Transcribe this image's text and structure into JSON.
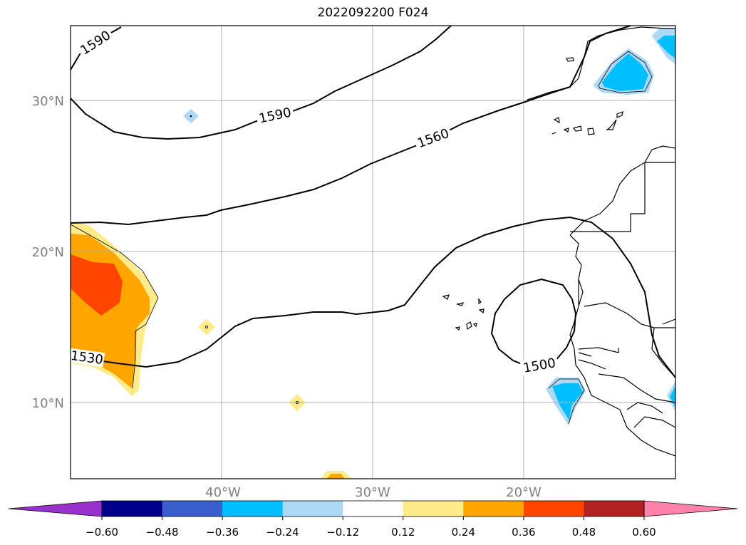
{
  "title": "2022092200 F024",
  "map": {
    "lat_labels": [
      "30°N",
      "20°N",
      "10°N"
    ],
    "lon_labels": [
      "40°W",
      "30°W",
      "20°W"
    ],
    "contour_labels": [
      "1590",
      "1590",
      "1560",
      "1530",
      "1500"
    ]
  },
  "colorbar": {
    "ticks": [
      "−0.60",
      "−0.48",
      "−0.36",
      "−0.24",
      "−0.12",
      "0.12",
      "0.24",
      "0.36",
      "0.48",
      "0.60"
    ],
    "colors": {
      "under": "#9932cc",
      "bins": [
        "#00008b",
        "#3a5fcd",
        "#00bfff",
        "#add8f6",
        "#ffffff",
        "#ffeb8a",
        "#ffa500",
        "#ff4500",
        "#b22222"
      ],
      "over": "#ff82ab"
    }
  },
  "anomaly_colors": {
    "pos_weak": "#ffeb8a",
    "pos_mid": "#ffa500",
    "pos_strong": "#ff4500",
    "neg_weak": "#add8f6",
    "neg_mid": "#00bfff"
  }
}
